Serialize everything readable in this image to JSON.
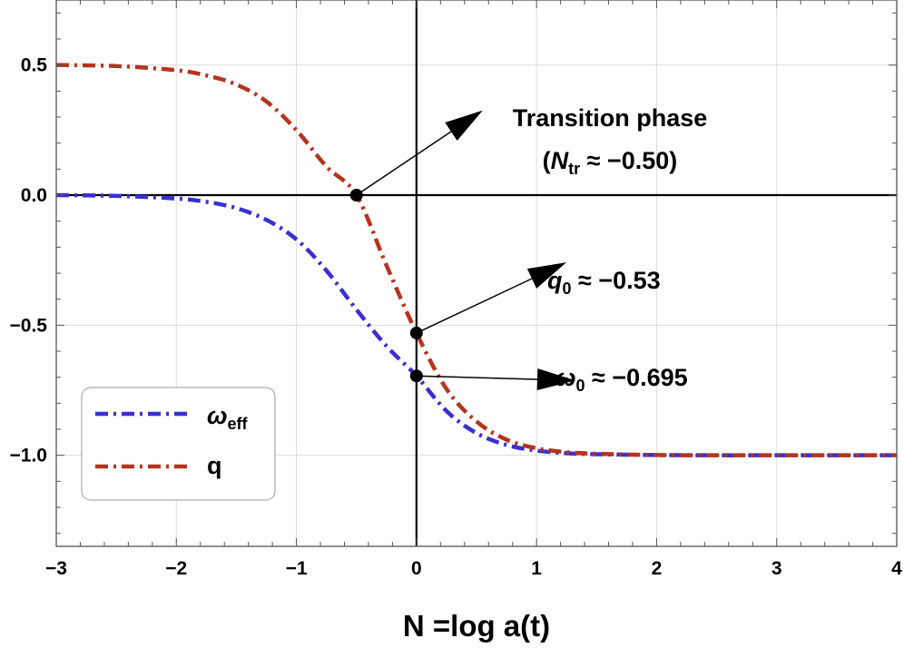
{
  "chart_data": {
    "type": "line",
    "xlabel": "N =log a(t)",
    "ylabel": "",
    "xlim": [
      -3,
      4
    ],
    "ylim": [
      -1.35,
      0.75
    ],
    "xticks": [
      -3,
      -2,
      -1,
      0,
      1,
      2,
      3,
      4
    ],
    "xtick_labels": [
      "−3",
      "−2",
      "−1",
      "0",
      "1",
      "2",
      "3",
      "4"
    ],
    "yticks": [
      0.5,
      0.0,
      -0.5,
      -1.0
    ],
    "ytick_labels": [
      "0.5",
      "0.0",
      "−0.5",
      "−1.0"
    ],
    "grid": true,
    "legend_position": "bottom-left",
    "series": [
      {
        "name": "ωeff",
        "legend_main": "ω",
        "legend_sub": "eff",
        "color": "#3a2fd0",
        "style": "dash-dot",
        "x": [
          -3.0,
          -2.5,
          -2.0,
          -1.75,
          -1.5,
          -1.25,
          -1.0,
          -0.75,
          -0.5,
          -0.25,
          0.0,
          0.25,
          0.5,
          0.75,
          1.0,
          1.25,
          1.5,
          2.0,
          2.5,
          3.0,
          3.5,
          4.0
        ],
        "y": [
          0.0,
          -0.003,
          -0.013,
          -0.026,
          -0.05,
          -0.095,
          -0.17,
          -0.29,
          -0.44,
          -0.58,
          -0.695,
          -0.83,
          -0.915,
          -0.96,
          -0.982,
          -0.992,
          -0.996,
          -0.999,
          -1.0,
          -1.0,
          -1.0,
          -1.0
        ]
      },
      {
        "name": "q",
        "legend_main": "q",
        "legend_sub": "",
        "color": "#b5341e",
        "style": "dash-dot",
        "x": [
          -3.0,
          -2.5,
          -2.0,
          -1.75,
          -1.5,
          -1.25,
          -1.0,
          -0.75,
          -0.5,
          -0.25,
          0.0,
          0.25,
          0.5,
          0.75,
          1.0,
          1.25,
          1.5,
          2.0,
          2.5,
          3.0,
          3.5,
          4.0
        ],
        "y": [
          0.5,
          0.496,
          0.48,
          0.46,
          0.425,
          0.36,
          0.25,
          0.11,
          0.0,
          -0.27,
          -0.53,
          -0.745,
          -0.87,
          -0.94,
          -0.973,
          -0.988,
          -0.994,
          -0.999,
          -1.0,
          -1.0,
          -1.0,
          -1.0
        ]
      }
    ],
    "reference_lines": {
      "x": 0,
      "y": 0
    },
    "annotations": [
      {
        "id": "transition",
        "point": [
          -0.5,
          0.0
        ],
        "line1": "Transition phase",
        "line2_open": "(",
        "line2_var": "N",
        "line2_sub": "tr",
        "line2_rest": " ≈ −0.50)"
      },
      {
        "id": "q0",
        "point": [
          0.0,
          -0.53
        ],
        "var": "q",
        "sub": "0",
        "rest": " ≈ −0.53"
      },
      {
        "id": "w0",
        "point": [
          0.0,
          -0.695
        ],
        "var": "ω",
        "sub": "0",
        "rest": " ≈ −0.695"
      }
    ]
  }
}
